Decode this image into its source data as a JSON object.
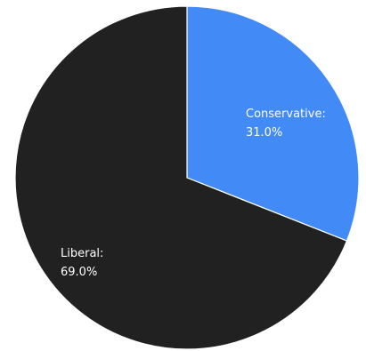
{
  "chart_data": {
    "type": "pie",
    "title": "",
    "slices": [
      {
        "label": "Conservative:",
        "value": 31.0,
        "value_label": "31.0%",
        "color": "#428af5"
      },
      {
        "label": "Liberal:",
        "value": 69.0,
        "value_label": "69.0%",
        "color": "#212121"
      }
    ],
    "start": "12 o'clock",
    "direction": "clockwise",
    "slice_border_color": "#ffffff",
    "legend": "none",
    "background": "#ffffff"
  }
}
